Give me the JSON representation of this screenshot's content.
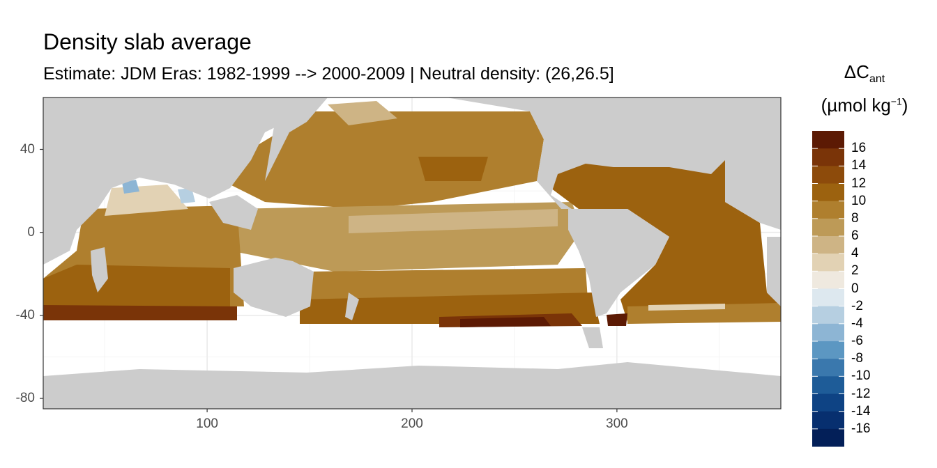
{
  "title": "Density slab average",
  "subtitle": "Estimate: JDM Eras: 1982-1999 --> 2000-2009 | Neutral density: (26,26.5]",
  "legend": {
    "symbol": "ΔC",
    "sub": "ant",
    "unit_prefix": "(µmol kg",
    "unit_sup": "−1",
    "unit_suffix": ")",
    "labels": [
      "16",
      "14",
      "12",
      "10",
      "8",
      "6",
      "4",
      "2",
      "0",
      "-2",
      "-4",
      "-6",
      "-8",
      "-10",
      "-12",
      "-14",
      "-16"
    ],
    "colors": [
      "#5c1a04",
      "#7a3408",
      "#8d4b0b",
      "#9c620f",
      "#af7f2e",
      "#bd9a57",
      "#ceb485",
      "#e2d2b4",
      "#efe9df",
      "#dde8ef",
      "#b6cfe1",
      "#8db5d4",
      "#5c97c2",
      "#3a78ad",
      "#1e5c98",
      "#0e4384",
      "#072f6f",
      "#031f58"
    ]
  },
  "axes": {
    "x_ticks": [
      100,
      200,
      300
    ],
    "y_ticks": [
      40,
      0,
      -40,
      -80
    ],
    "x_range": [
      20,
      380
    ],
    "y_range": [
      -85,
      65
    ],
    "grid": true
  },
  "colors": {
    "land": "#cccccc",
    "panel_border": "#333333",
    "grid": "#ebebeb"
  }
}
